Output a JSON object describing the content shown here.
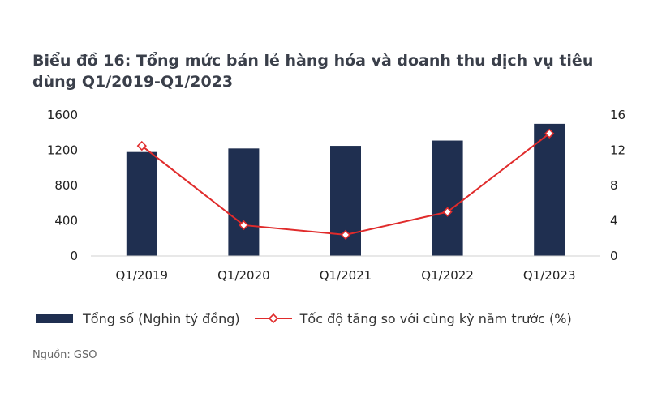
{
  "title": "Biểu đồ 16:  Tổng mức bán lẻ hàng hóa và doanh thu dịch vụ tiêu dùng Q1/2019-Q1/2023",
  "source": "Nguồn: GSO",
  "colors": {
    "bar": "#1f2f50",
    "line": "#e02b2b"
  },
  "chart_data": {
    "type": "bar",
    "categories": [
      "Q1/2019",
      "Q1/2020",
      "Q1/2021",
      "Q1/2022",
      "Q1/2023"
    ],
    "series": [
      {
        "name": "Tổng số (Nghìn tỷ đồng)",
        "type": "bar",
        "axis": "left",
        "values": [
          1180,
          1220,
          1250,
          1310,
          1500
        ]
      },
      {
        "name": "Tốc độ tăng so với cùng kỳ năm trước (%)",
        "type": "line",
        "axis": "right",
        "marker": "diamond",
        "values": [
          12.5,
          3.5,
          2.4,
          5.0,
          13.9
        ]
      }
    ],
    "ylim_left": [
      0,
      1600
    ],
    "yticks_left": [
      0,
      400,
      800,
      1200,
      1600
    ],
    "ylim_right": [
      0,
      16
    ],
    "yticks_right": [
      0,
      4,
      8,
      12,
      16
    ],
    "legend_position": "bottom",
    "grid": false
  },
  "legend": [
    {
      "label": "Tổng số (Nghìn tỷ đồng)"
    },
    {
      "label": "Tốc độ tăng so với cùng kỳ năm trước (%)"
    }
  ]
}
